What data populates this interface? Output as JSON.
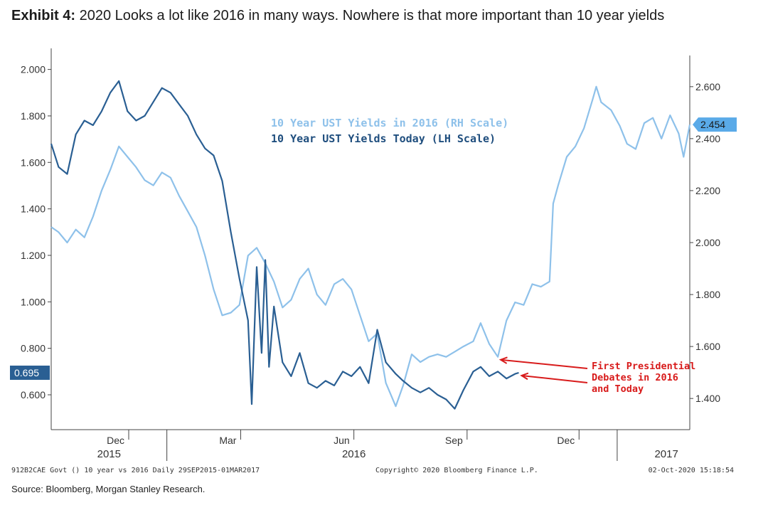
{
  "exhibit_label": "Exhibit 4:",
  "exhibit_title": "2020 Looks a lot like 2016 in many ways. Nowhere is that more important than 10 year yields",
  "source": "Source: Bloomberg, Morgan Stanley Research.",
  "footer": {
    "left": "912B2CAE Govt () 10 year vs 2016  Daily 29SEP2015-01MAR2017",
    "center": "Copyright© 2020 Bloomberg Finance L.P.",
    "right": "02-Oct-2020 15:18:54"
  },
  "colors": {
    "series_2016": "#8ec1ea",
    "series_today": "#2a5f93",
    "annotation": "#d81b1b",
    "last_today_badge": "#2a5f93",
    "last_2016_badge": "#5aaae8"
  },
  "chart_data": {
    "type": "line",
    "x_range": [
      "2015-09-29",
      "2017-03-01"
    ],
    "x_ticks": [
      {
        "label": "Dec",
        "date": "2015-12-01"
      },
      {
        "label": "Mar",
        "date": "2016-03-01"
      },
      {
        "label": "Jun",
        "date": "2016-06-01"
      },
      {
        "label": "Sep",
        "date": "2016-09-01"
      },
      {
        "label": "Dec",
        "date": "2016-12-01"
      }
    ],
    "year_labels": [
      {
        "label": "2015",
        "date": "2015-11-15"
      },
      {
        "label": "2016",
        "date": "2016-06-01"
      },
      {
        "label": "2017",
        "date": "2017-02-10"
      }
    ],
    "year_separators": [
      "2016-01-01",
      "2017-01-01"
    ],
    "y_left": {
      "range": [
        0.45,
        2.06
      ],
      "ticks": [
        "0.600",
        "0.800",
        "1.000",
        "1.200",
        "1.400",
        "1.600",
        "1.800",
        "2.000"
      ],
      "last_value_label": "0.695"
    },
    "y_right": {
      "range": [
        1.28,
        2.72
      ],
      "ticks": [
        "1.400",
        "1.600",
        "1.800",
        "2.000",
        "2.200",
        "2.400",
        "2.600"
      ],
      "last_value_label": "2.454"
    },
    "legend": [
      "10 Year UST Yields in 2016 (RH Scale)",
      "10 Year UST Yields Today (LH Scale)"
    ],
    "annotation": [
      "First Presidential",
      "Debates in 2016",
      "and Today"
    ],
    "series": [
      {
        "name": "10 Year UST Yields in 2016 (RH Scale)",
        "axis": "right",
        "points": [
          [
            "2015-09-29",
            2.06
          ],
          [
            "2015-10-05",
            2.04
          ],
          [
            "2015-10-12",
            2.0
          ],
          [
            "2015-10-19",
            2.05
          ],
          [
            "2015-10-26",
            2.02
          ],
          [
            "2015-11-02",
            2.1
          ],
          [
            "2015-11-09",
            2.2
          ],
          [
            "2015-11-16",
            2.28
          ],
          [
            "2015-11-23",
            2.37
          ],
          [
            "2015-11-30",
            2.33
          ],
          [
            "2015-12-07",
            2.29
          ],
          [
            "2015-12-14",
            2.24
          ],
          [
            "2015-12-21",
            2.22
          ],
          [
            "2015-12-28",
            2.27
          ],
          [
            "2016-01-04",
            2.25
          ],
          [
            "2016-01-11",
            2.18
          ],
          [
            "2016-01-18",
            2.12
          ],
          [
            "2016-01-25",
            2.06
          ],
          [
            "2016-02-01",
            1.95
          ],
          [
            "2016-02-08",
            1.82
          ],
          [
            "2016-02-15",
            1.72
          ],
          [
            "2016-02-22",
            1.73
          ],
          [
            "2016-02-29",
            1.76
          ],
          [
            "2016-03-07",
            1.95
          ],
          [
            "2016-03-14",
            1.98
          ],
          [
            "2016-03-21",
            1.92
          ],
          [
            "2016-03-28",
            1.85
          ],
          [
            "2016-04-04",
            1.75
          ],
          [
            "2016-04-11",
            1.78
          ],
          [
            "2016-04-18",
            1.86
          ],
          [
            "2016-04-25",
            1.9
          ],
          [
            "2016-05-02",
            1.8
          ],
          [
            "2016-05-09",
            1.76
          ],
          [
            "2016-05-16",
            1.84
          ],
          [
            "2016-05-23",
            1.86
          ],
          [
            "2016-05-30",
            1.82
          ],
          [
            "2016-06-06",
            1.72
          ],
          [
            "2016-06-13",
            1.62
          ],
          [
            "2016-06-20",
            1.65
          ],
          [
            "2016-06-27",
            1.46
          ],
          [
            "2016-07-05",
            1.37
          ],
          [
            "2016-07-11",
            1.45
          ],
          [
            "2016-07-18",
            1.57
          ],
          [
            "2016-07-25",
            1.54
          ],
          [
            "2016-08-01",
            1.56
          ],
          [
            "2016-08-08",
            1.57
          ],
          [
            "2016-08-15",
            1.56
          ],
          [
            "2016-08-22",
            1.58
          ],
          [
            "2016-08-29",
            1.6
          ],
          [
            "2016-09-06",
            1.62
          ],
          [
            "2016-09-12",
            1.69
          ],
          [
            "2016-09-19",
            1.61
          ],
          [
            "2016-09-26",
            1.56
          ],
          [
            "2016-10-03",
            1.7
          ],
          [
            "2016-10-10",
            1.77
          ],
          [
            "2016-10-17",
            1.76
          ],
          [
            "2016-10-24",
            1.84
          ],
          [
            "2016-10-31",
            1.83
          ],
          [
            "2016-11-07",
            1.85
          ],
          [
            "2016-11-10",
            2.15
          ],
          [
            "2016-11-14",
            2.22
          ],
          [
            "2016-11-21",
            2.33
          ],
          [
            "2016-11-28",
            2.37
          ],
          [
            "2016-12-05",
            2.44
          ],
          [
            "2016-12-12",
            2.55
          ],
          [
            "2016-12-15",
            2.6
          ],
          [
            "2016-12-19",
            2.54
          ],
          [
            "2016-12-27",
            2.51
          ],
          [
            "2017-01-03",
            2.45
          ],
          [
            "2017-01-09",
            2.38
          ],
          [
            "2017-01-16",
            2.36
          ],
          [
            "2017-01-23",
            2.46
          ],
          [
            "2017-01-30",
            2.48
          ],
          [
            "2017-02-06",
            2.4
          ],
          [
            "2017-02-13",
            2.49
          ],
          [
            "2017-02-20",
            2.42
          ],
          [
            "2017-02-24",
            2.33
          ],
          [
            "2017-03-01",
            2.454
          ]
        ]
      },
      {
        "name": "10 Year UST Yields Today (LH Scale)",
        "axis": "left",
        "points": [
          [
            "2015-09-29",
            1.68
          ],
          [
            "2015-10-05",
            1.58
          ],
          [
            "2015-10-12",
            1.55
          ],
          [
            "2015-10-19",
            1.72
          ],
          [
            "2015-10-26",
            1.78
          ],
          [
            "2015-11-02",
            1.76
          ],
          [
            "2015-11-09",
            1.82
          ],
          [
            "2015-11-16",
            1.9
          ],
          [
            "2015-11-23",
            1.95
          ],
          [
            "2015-11-30",
            1.82
          ],
          [
            "2015-12-07",
            1.78
          ],
          [
            "2015-12-14",
            1.8
          ],
          [
            "2015-12-21",
            1.86
          ],
          [
            "2015-12-28",
            1.92
          ],
          [
            "2016-01-04",
            1.9
          ],
          [
            "2016-01-11",
            1.85
          ],
          [
            "2016-01-18",
            1.8
          ],
          [
            "2016-01-25",
            1.72
          ],
          [
            "2016-02-01",
            1.66
          ],
          [
            "2016-02-08",
            1.63
          ],
          [
            "2016-02-15",
            1.52
          ],
          [
            "2016-02-22",
            1.3
          ],
          [
            "2016-02-29",
            1.1
          ],
          [
            "2016-03-07",
            0.92
          ],
          [
            "2016-03-10",
            0.56
          ],
          [
            "2016-03-14",
            1.15
          ],
          [
            "2016-03-18",
            0.78
          ],
          [
            "2016-03-21",
            1.18
          ],
          [
            "2016-03-24",
            0.72
          ],
          [
            "2016-03-28",
            0.98
          ],
          [
            "2016-04-04",
            0.74
          ],
          [
            "2016-04-11",
            0.68
          ],
          [
            "2016-04-18",
            0.78
          ],
          [
            "2016-04-25",
            0.65
          ],
          [
            "2016-05-02",
            0.63
          ],
          [
            "2016-05-09",
            0.66
          ],
          [
            "2016-05-16",
            0.64
          ],
          [
            "2016-05-23",
            0.7
          ],
          [
            "2016-05-30",
            0.68
          ],
          [
            "2016-06-06",
            0.72
          ],
          [
            "2016-06-13",
            0.65
          ],
          [
            "2016-06-20",
            0.88
          ],
          [
            "2016-06-27",
            0.74
          ],
          [
            "2016-07-05",
            0.69
          ],
          [
            "2016-07-11",
            0.66
          ],
          [
            "2016-07-18",
            0.63
          ],
          [
            "2016-07-25",
            0.61
          ],
          [
            "2016-08-01",
            0.63
          ],
          [
            "2016-08-08",
            0.6
          ],
          [
            "2016-08-15",
            0.58
          ],
          [
            "2016-08-22",
            0.54
          ],
          [
            "2016-08-29",
            0.62
          ],
          [
            "2016-09-06",
            0.7
          ],
          [
            "2016-09-12",
            0.72
          ],
          [
            "2016-09-19",
            0.68
          ],
          [
            "2016-09-26",
            0.7
          ],
          [
            "2016-10-03",
            0.67
          ],
          [
            "2016-10-10",
            0.69
          ],
          [
            "2016-10-13",
            0.695
          ]
        ]
      }
    ]
  }
}
